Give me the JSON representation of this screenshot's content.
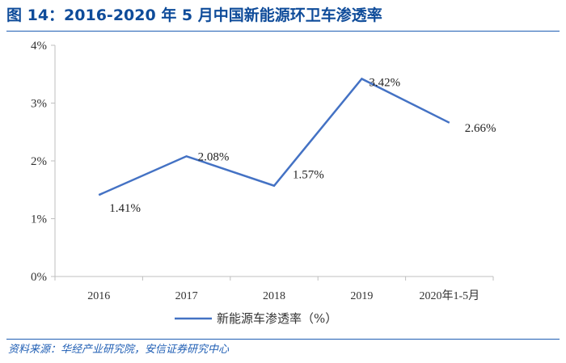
{
  "header": {
    "title": "图 14：2016-2020 年 5 月中国新能源环卫车渗透率"
  },
  "footer": {
    "source": "资料来源：华经产业研究院，安信证券研究中心"
  },
  "colors": {
    "title": "#0f4c9a",
    "rule": "#1f5eb4",
    "line": "#4472c4",
    "axis": "#bfbfbf"
  },
  "chart_data": {
    "type": "line",
    "title": "图 14：2016-2020 年 5 月中国新能源环卫车渗透率",
    "xlabel": "",
    "ylabel": "",
    "categories": [
      "2016",
      "2017",
      "2018",
      "2019",
      "2020年1-5月"
    ],
    "series": [
      {
        "name": "新能源车渗透率（%）",
        "values": [
          1.41,
          2.08,
          1.57,
          3.42,
          2.66
        ],
        "labels": [
          "1.41%",
          "2.08%",
          "1.57%",
          "3.42%",
          "2.66%"
        ]
      }
    ],
    "ylim": [
      0,
      4
    ],
    "yticks": [
      0,
      1,
      2,
      3,
      4
    ],
    "ytick_labels": [
      "0%",
      "1%",
      "2%",
      "3%",
      "4%"
    ],
    "grid": false,
    "legend": "bottom-center"
  }
}
